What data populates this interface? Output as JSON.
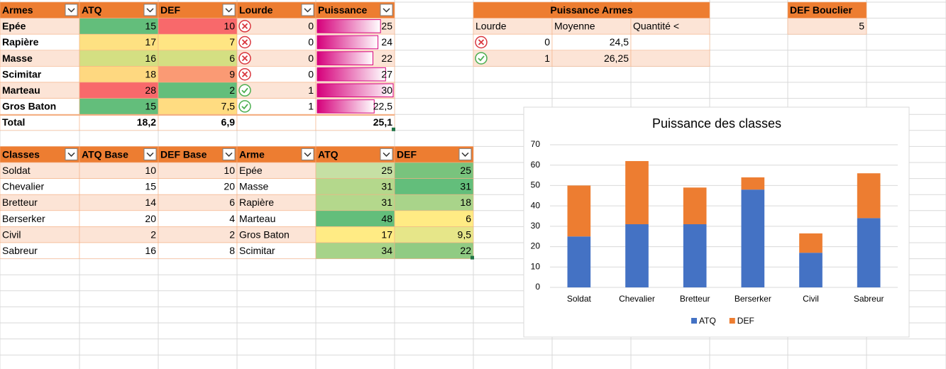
{
  "weapons": {
    "headers": [
      "Armes",
      "ATQ",
      "DEF",
      "Lourde",
      "Puissance"
    ],
    "rows": [
      [
        "Epée",
        "15",
        "10",
        "0",
        {
          "value": 25,
          "label": "25"
        }
      ],
      [
        "Rapière",
        "17",
        "7",
        "0",
        {
          "value": 24,
          "label": "24"
        }
      ],
      [
        "Masse",
        "16",
        "6",
        "0",
        {
          "value": 22,
          "label": "22"
        }
      ],
      [
        "Scimitar",
        "18",
        "9",
        "0",
        {
          "value": 27,
          "label": "27"
        }
      ],
      [
        "Marteau",
        "28",
        "2",
        "1",
        {
          "value": 30,
          "label": "30"
        }
      ],
      [
        "Gros Baton",
        "15",
        "7,5",
        "1",
        {
          "value": 22.5,
          "label": "22,5"
        }
      ]
    ],
    "total": {
      "label": "Total",
      "atq": "18,2",
      "def": "6,9",
      "puissance": "25,1"
    }
  },
  "pivot": {
    "title": "Puissance Armes",
    "headers": [
      "Lourde",
      "Moyenne",
      "Quantité <"
    ],
    "rows": [
      [
        "0",
        "24,5"
      ],
      [
        "1",
        "26,25"
      ]
    ]
  },
  "shield": {
    "title": "DEF Bouclier",
    "value": "5"
  },
  "classes": {
    "headers": [
      "Classes",
      "ATQ Base",
      "DEF Base",
      "Arme",
      "ATQ",
      "DEF"
    ],
    "rows": [
      [
        "Soldat",
        "10",
        "10",
        "Epée",
        "25",
        "25"
      ],
      [
        "Chevalier",
        "15",
        "20",
        "Masse",
        "31",
        "31"
      ],
      [
        "Bretteur",
        "14",
        "6",
        "Rapière",
        "31",
        "18"
      ],
      [
        "Berserker",
        "20",
        "4",
        "Marteau",
        "48",
        "6"
      ],
      [
        "Civil",
        "2",
        "2",
        "Gros Baton",
        "17",
        "9,5"
      ],
      [
        "Sabreur",
        "16",
        "8",
        "Scimitar",
        "34",
        "22"
      ]
    ]
  },
  "chart_data": {
    "type": "stacked_bar",
    "title": "Puissance des classes",
    "categories": [
      "Soldat",
      "Chevalier",
      "Bretteur",
      "Berserker",
      "Civil",
      "Sabreur"
    ],
    "series": [
      {
        "name": "ATQ",
        "color": "#4472c4",
        "values": [
          25,
          31,
          31,
          48,
          17,
          34
        ]
      },
      {
        "name": "DEF",
        "color": "#ed7d31",
        "values": [
          25,
          31,
          18,
          6,
          9.5,
          22
        ]
      }
    ],
    "ylim": [
      0,
      70
    ],
    "yticks": [
      0,
      10,
      20,
      30,
      40,
      50,
      60,
      70
    ],
    "grid": true,
    "legend": "bottom"
  }
}
